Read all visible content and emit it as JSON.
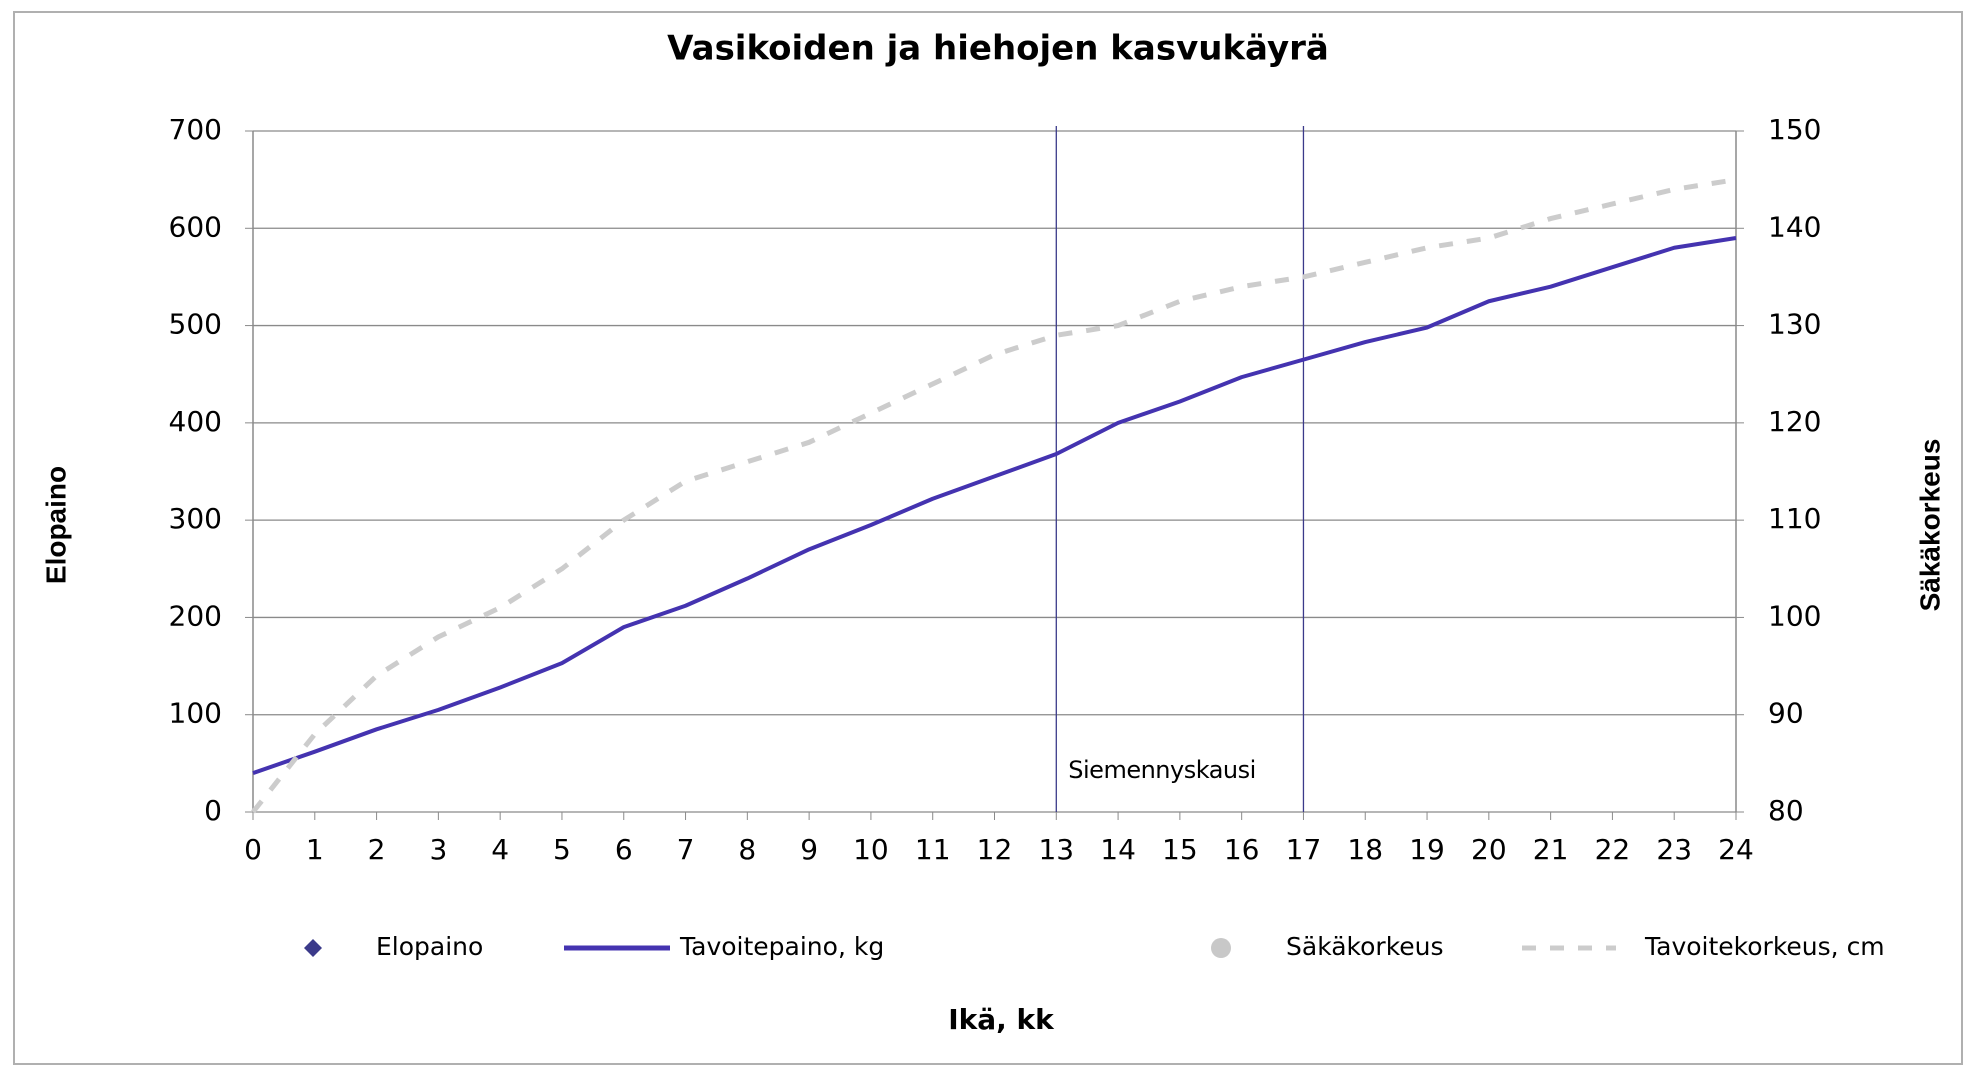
{
  "chart_data": {
    "type": "line",
    "title": "Vasikoiden ja hiehojen kasvukäyrä",
    "x_label": "Ikä, kk",
    "y_label": "Elopaino",
    "y2_label": "Säkäkorkeus",
    "x": [
      0,
      1,
      2,
      3,
      4,
      5,
      6,
      7,
      8,
      9,
      10,
      11,
      12,
      13,
      14,
      15,
      16,
      17,
      18,
      19,
      20,
      21,
      22,
      23,
      24
    ],
    "xlim": [
      0,
      24
    ],
    "xticks": [
      0,
      1,
      2,
      3,
      4,
      5,
      6,
      7,
      8,
      9,
      10,
      11,
      12,
      13,
      14,
      15,
      16,
      17,
      18,
      19,
      20,
      21,
      22,
      23,
      24
    ],
    "ylim": [
      0,
      700
    ],
    "yticks": [
      0,
      100,
      200,
      300,
      400,
      500,
      600,
      700
    ],
    "y2lim": [
      80,
      150
    ],
    "y2ticks": [
      80,
      90,
      100,
      110,
      120,
      130,
      140,
      150
    ],
    "grid": true,
    "reference_lines": [
      13,
      17
    ],
    "annotation": "Siemennyskausi",
    "series": [
      {
        "name": "Elopaino",
        "color": "#3b3a8a",
        "marker": "diamond",
        "values": [
          null,
          null,
          null,
          null,
          null,
          null,
          null,
          null,
          null,
          null,
          null,
          null,
          null,
          null,
          null,
          null,
          null,
          null,
          null,
          null,
          null,
          null,
          null,
          null,
          null
        ]
      },
      {
        "name": "Tavoitepaino, kg",
        "color": "#4433b0",
        "style": "solid",
        "values": [
          40,
          62,
          85,
          105,
          128,
          153,
          190,
          212,
          240,
          270,
          295,
          322,
          345,
          368,
          400,
          422,
          447,
          465,
          483,
          498,
          525,
          540,
          560,
          580,
          590
        ]
      },
      {
        "name": "Säkäkorkeus",
        "color": "#c8c8c8",
        "marker": "circle",
        "axis": "y2",
        "values": [
          null,
          null,
          null,
          null,
          null,
          null,
          null,
          null,
          null,
          null,
          null,
          null,
          null,
          null,
          null,
          null,
          null,
          null,
          null,
          null,
          null,
          null,
          null,
          null,
          null
        ]
      },
      {
        "name": "Tavoitekorkeus, cm",
        "color": "#cccccc",
        "style": "dashed",
        "axis": "y2",
        "values": [
          80,
          88,
          94,
          98,
          101,
          105,
          110,
          114,
          116,
          118,
          121,
          124,
          127,
          129,
          130,
          132.5,
          134,
          135,
          136.5,
          138,
          139,
          141,
          142.5,
          144,
          145
        ]
      }
    ]
  }
}
